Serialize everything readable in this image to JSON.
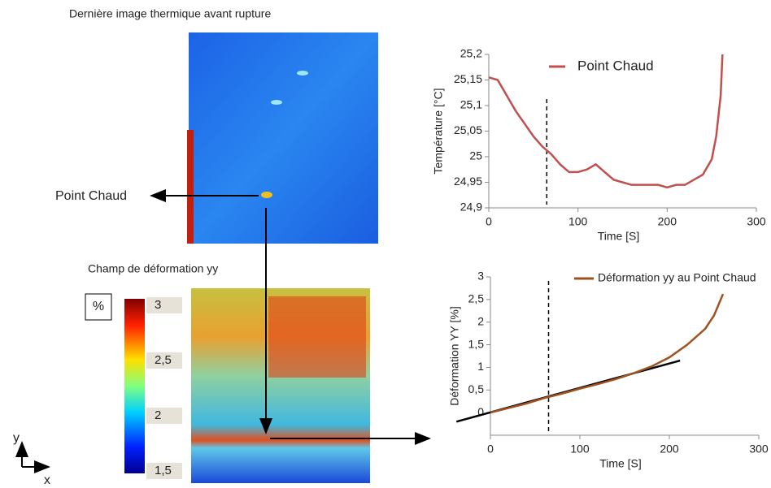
{
  "figure": {
    "thermal_title": "Dernière image thermique avant rupture",
    "hotspot_label": "Point Chaud",
    "strain_title": "Champ de déformation yy",
    "axis_y": "y",
    "axis_x": "x"
  },
  "colorbar": {
    "unit": "%",
    "lim": [
      1.5,
      3
    ],
    "ticks": [
      {
        "value": 1.5,
        "label": "1,5"
      },
      2,
      {
        "value": 2.5,
        "label": "2,5"
      },
      3
    ]
  },
  "chart_data": [
    {
      "type": "line",
      "xlabel": "Time [S]",
      "ylabel": "Température [°C]",
      "x": [
        0,
        10,
        20,
        30,
        40,
        50,
        60,
        70,
        80,
        90,
        100,
        110,
        120,
        130,
        140,
        150,
        160,
        170,
        180,
        190,
        200,
        210,
        220,
        230,
        240,
        250,
        255,
        260,
        262
      ],
      "series": [
        {
          "name": "Point Chaud",
          "color": "#c0504d",
          "values": [
            25.155,
            25.15,
            25.12,
            25.09,
            25.065,
            25.04,
            25.02,
            25.005,
            24.985,
            24.97,
            24.97,
            24.975,
            24.985,
            24.97,
            24.955,
            24.95,
            24.945,
            24.945,
            24.945,
            24.945,
            24.94,
            24.945,
            24.945,
            24.955,
            24.965,
            24.995,
            25.04,
            25.12,
            25.2
          ]
        }
      ],
      "xlim": [
        0,
        300
      ],
      "ylim": [
        24.9,
        25.2
      ],
      "xticks": [
        0,
        100,
        200,
        300
      ],
      "yticks": [
        {
          "value": 24.9,
          "label": "24,9"
        },
        {
          "value": 24.95,
          "label": "24,95"
        },
        25,
        {
          "value": 25.05,
          "label": "25,05"
        },
        {
          "value": 25.1,
          "label": "25,1"
        },
        {
          "value": 25.15,
          "label": "25,15"
        },
        {
          "value": 25.2,
          "label": "25,2"
        }
      ],
      "vline": 65
    },
    {
      "type": "line",
      "xlabel": "Time [S]",
      "ylabel": "Déformation YY [%]",
      "x": [
        0,
        20,
        40,
        60,
        80,
        100,
        120,
        140,
        160,
        180,
        200,
        220,
        240,
        250,
        260
      ],
      "series": [
        {
          "name": "Déformation yy au Point Chaud",
          "color": "#a0521e",
          "values": [
            0,
            0.1,
            0.2,
            0.32,
            0.42,
            0.53,
            0.63,
            0.74,
            0.87,
            1.02,
            1.22,
            1.5,
            1.85,
            2.15,
            2.62
          ]
        }
      ],
      "reference_line": {
        "color": "#000000",
        "x": [
          -38,
          212
        ],
        "values": [
          -0.2,
          1.15
        ]
      },
      "xlim": [
        0,
        300
      ],
      "ylim": [
        -0.5,
        3
      ],
      "xticks": [
        0,
        100,
        200,
        300
      ],
      "yticks": [
        0,
        {
          "value": 0.5,
          "label": "0,5"
        },
        1,
        {
          "value": 1.5,
          "label": "1,5"
        },
        2,
        {
          "value": 2.5,
          "label": "2,5"
        },
        3
      ],
      "vline": 65
    }
  ]
}
